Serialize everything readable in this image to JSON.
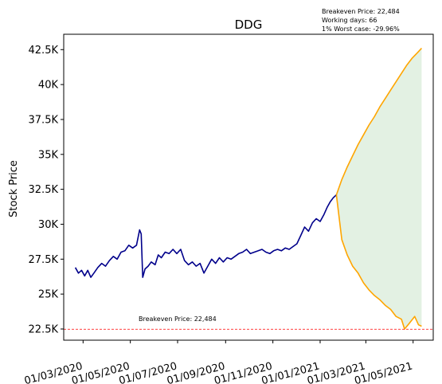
{
  "chart_data": {
    "type": "line",
    "title": "DDG",
    "ylabel": "Stock Price",
    "xlabel": "",
    "ylim": [
      21700,
      43600
    ],
    "xlim": [
      "2020-02-05",
      "2021-05-27"
    ],
    "y_ticks": [
      22500,
      25000,
      27500,
      30000,
      32500,
      35000,
      37500,
      40000,
      42500
    ],
    "y_tick_labels": [
      "22.5K",
      "25K",
      "27.5K",
      "30K",
      "32.5K",
      "35K",
      "37.5K",
      "40K",
      "42.5K"
    ],
    "x_ticks": [
      "2020-03-01",
      "2020-05-01",
      "2020-07-01",
      "2020-09-01",
      "2020-11-01",
      "2021-01-01",
      "2021-03-01",
      "2021-05-01"
    ],
    "x_tick_labels": [
      "01/03/2020",
      "01/05/2020",
      "01/07/2020",
      "01/09/2020",
      "01/11/2020",
      "01/01/2021",
      "01/03/2021",
      "01/05/2021"
    ],
    "series": [
      {
        "role": "history",
        "color": "#00008b",
        "points": [
          [
            "2020-02-20",
            26900
          ],
          [
            "2020-02-24",
            26500
          ],
          [
            "2020-02-28",
            26700
          ],
          [
            "2020-03-03",
            26300
          ],
          [
            "2020-03-07",
            26700
          ],
          [
            "2020-03-11",
            26200
          ],
          [
            "2020-03-15",
            26500
          ],
          [
            "2020-03-20",
            26900
          ],
          [
            "2020-03-25",
            27200
          ],
          [
            "2020-03-30",
            27000
          ],
          [
            "2020-04-04",
            27400
          ],
          [
            "2020-04-09",
            27700
          ],
          [
            "2020-04-14",
            27500
          ],
          [
            "2020-04-19",
            28000
          ],
          [
            "2020-04-24",
            28100
          ],
          [
            "2020-04-29",
            28500
          ],
          [
            "2020-05-04",
            28300
          ],
          [
            "2020-05-09",
            28500
          ],
          [
            "2020-05-13",
            29600
          ],
          [
            "2020-05-15",
            29300
          ],
          [
            "2020-05-17",
            26200
          ],
          [
            "2020-05-20",
            26800
          ],
          [
            "2020-05-24",
            27000
          ],
          [
            "2020-05-28",
            27300
          ],
          [
            "2020-06-02",
            27100
          ],
          [
            "2020-06-06",
            27800
          ],
          [
            "2020-06-10",
            27600
          ],
          [
            "2020-06-15",
            28000
          ],
          [
            "2020-06-20",
            27900
          ],
          [
            "2020-06-25",
            28200
          ],
          [
            "2020-06-30",
            27900
          ],
          [
            "2020-07-05",
            28200
          ],
          [
            "2020-07-10",
            27400
          ],
          [
            "2020-07-15",
            27100
          ],
          [
            "2020-07-20",
            27300
          ],
          [
            "2020-07-25",
            27000
          ],
          [
            "2020-07-30",
            27200
          ],
          [
            "2020-08-04",
            26500
          ],
          [
            "2020-08-09",
            27000
          ],
          [
            "2020-08-14",
            27500
          ],
          [
            "2020-08-19",
            27200
          ],
          [
            "2020-08-24",
            27600
          ],
          [
            "2020-08-29",
            27300
          ],
          [
            "2020-09-03",
            27600
          ],
          [
            "2020-09-08",
            27500
          ],
          [
            "2020-09-13",
            27700
          ],
          [
            "2020-09-18",
            27900
          ],
          [
            "2020-09-23",
            28000
          ],
          [
            "2020-09-28",
            28200
          ],
          [
            "2020-10-03",
            27900
          ],
          [
            "2020-10-08",
            28000
          ],
          [
            "2020-10-13",
            28100
          ],
          [
            "2020-10-18",
            28200
          ],
          [
            "2020-10-23",
            28000
          ],
          [
            "2020-10-28",
            27900
          ],
          [
            "2020-11-02",
            28100
          ],
          [
            "2020-11-07",
            28200
          ],
          [
            "2020-11-12",
            28100
          ],
          [
            "2020-11-17",
            28300
          ],
          [
            "2020-11-22",
            28200
          ],
          [
            "2020-11-27",
            28400
          ],
          [
            "2020-12-02",
            28600
          ],
          [
            "2020-12-07",
            29200
          ],
          [
            "2020-12-12",
            29800
          ],
          [
            "2020-12-17",
            29500
          ],
          [
            "2020-12-22",
            30100
          ],
          [
            "2020-12-27",
            30400
          ],
          [
            "2021-01-01",
            30200
          ],
          [
            "2021-01-06",
            30700
          ],
          [
            "2021-01-10",
            31200
          ],
          [
            "2021-01-14",
            31600
          ],
          [
            "2021-01-18",
            31900
          ],
          [
            "2021-01-22",
            32100
          ]
        ]
      },
      {
        "role": "best-case",
        "color": "#ffa500",
        "points": [
          [
            "2021-01-22",
            32100
          ],
          [
            "2021-01-29",
            33200
          ],
          [
            "2021-02-05",
            34100
          ],
          [
            "2021-02-12",
            34900
          ],
          [
            "2021-02-19",
            35700
          ],
          [
            "2021-02-26",
            36400
          ],
          [
            "2021-03-05",
            37100
          ],
          [
            "2021-03-12",
            37700
          ],
          [
            "2021-03-19",
            38400
          ],
          [
            "2021-03-26",
            39000
          ],
          [
            "2021-04-02",
            39600
          ],
          [
            "2021-04-09",
            40200
          ],
          [
            "2021-04-16",
            40800
          ],
          [
            "2021-04-23",
            41400
          ],
          [
            "2021-04-30",
            41900
          ],
          [
            "2021-05-07",
            42300
          ],
          [
            "2021-05-12",
            42600
          ]
        ]
      },
      {
        "role": "worst-case",
        "color": "#ffa500",
        "points": [
          [
            "2021-01-22",
            32100
          ],
          [
            "2021-01-29",
            28900
          ],
          [
            "2021-02-05",
            27800
          ],
          [
            "2021-02-12",
            27000
          ],
          [
            "2021-02-19",
            26500
          ],
          [
            "2021-02-26",
            25800
          ],
          [
            "2021-03-05",
            25300
          ],
          [
            "2021-03-12",
            24900
          ],
          [
            "2021-03-19",
            24600
          ],
          [
            "2021-03-26",
            24200
          ],
          [
            "2021-04-02",
            23900
          ],
          [
            "2021-04-09",
            23400
          ],
          [
            "2021-04-16",
            23200
          ],
          [
            "2021-04-20",
            22500
          ],
          [
            "2021-04-26",
            22900
          ],
          [
            "2021-05-03",
            23400
          ],
          [
            "2021-05-08",
            22800
          ],
          [
            "2021-05-12",
            22700
          ]
        ]
      }
    ],
    "fill_between": {
      "color": "#e3f1e3",
      "between": [
        "worst-case",
        "best-case"
      ]
    },
    "hline": {
      "y": 22484,
      "color": "#ff0000",
      "style": "dashed",
      "label": "Breakeven Price: 22,484"
    },
    "annotation_lines": [
      "Breakeven Price: 22,484",
      "Working days: 66",
      "1% Worst case: -29.96%"
    ],
    "grid": false,
    "legend": "none"
  }
}
